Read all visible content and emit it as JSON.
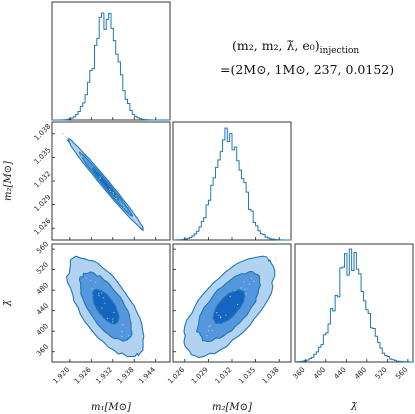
{
  "annotation": {
    "line1": "(m₂, m₂, λ̃, e₀)ₓinjection",
    "line1_main": "(m₂, m₂, λ̃, e₀)",
    "line1_sub": "injection",
    "line2": "=(2M⊙, 1M⊙, 237, 0.0152)"
  },
  "colors": {
    "line": "#1f77b4",
    "fill_dark": "#1565c0",
    "fill_mid": "#4a90d9",
    "fill_light": "#a9cdf0"
  },
  "chart_data": {
    "type": "corner",
    "parameters": [
      {
        "name": "m1",
        "label": "m₁[M⊙]",
        "range": [
          1.915,
          1.948
        ],
        "ticks": [
          "1.920",
          "1.926",
          "1.932",
          "1.938",
          "1.944"
        ],
        "tick_values": [
          1.92,
          1.926,
          1.932,
          1.938,
          1.944
        ]
      },
      {
        "name": "m2",
        "label": "m₂[M⊙]",
        "range": [
          1.0245,
          1.0395
        ],
        "ticks": [
          "1.026",
          "1.029",
          "1.032",
          "1.035",
          "1.038"
        ],
        "tick_values": [
          1.026,
          1.029,
          1.032,
          1.035,
          1.038
        ]
      },
      {
        "name": "lambda",
        "label": "λ̃",
        "range": [
          340,
          570
        ],
        "ticks": [
          "360",
          "400",
          "440",
          "480",
          "520",
          "560"
        ],
        "tick_values": [
          360,
          400,
          440,
          480,
          520,
          560
        ]
      }
    ],
    "marginals": [
      {
        "param": "m1",
        "mean": 1.93,
        "std": 0.0033
      },
      {
        "param": "m2",
        "mean": 1.0316,
        "std": 0.0018
      },
      {
        "param": "lambda",
        "mean": 448,
        "std": 30
      }
    ],
    "pairs": [
      {
        "x": "m1",
        "y": "m2",
        "correlation": -0.99
      },
      {
        "x": "m1",
        "y": "lambda",
        "correlation": -0.65
      },
      {
        "x": "m2",
        "y": "lambda",
        "correlation": 0.65
      }
    ],
    "contour_levels": [
      "1-sigma",
      "2-sigma",
      "3-sigma"
    ]
  }
}
